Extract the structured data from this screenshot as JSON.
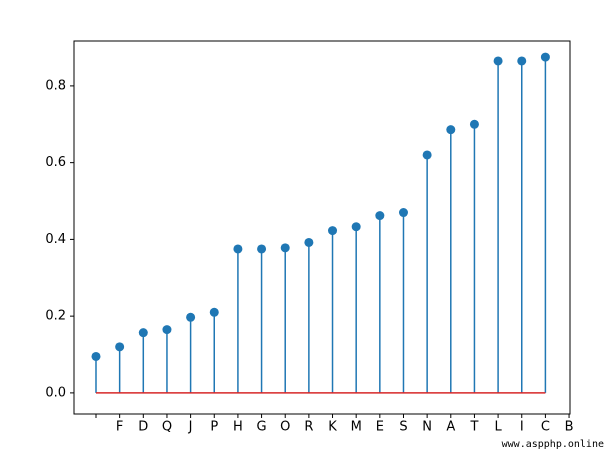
{
  "chart_data": {
    "type": "stem",
    "categories": [
      null,
      "F",
      "D",
      "Q",
      "J",
      "P",
      "H",
      "G",
      "O",
      "R",
      "K",
      "M",
      "E",
      "S",
      "N",
      "A",
      "T",
      "L",
      "I",
      "C",
      "B"
    ],
    "values": [
      0.095,
      0.12,
      0.157,
      0.165,
      0.197,
      0.21,
      0.375,
      0.375,
      0.378,
      0.392,
      0.423,
      0.433,
      0.462,
      0.47,
      0.62,
      0.686,
      0.7,
      0.865,
      0.865,
      0.875,
      null
    ],
    "color": "#1f77b4",
    "baseline": 0,
    "baseline_color": "#d62728",
    "xlim": [
      -0.93,
      20.04
    ],
    "ylim": [
      -0.055,
      0.917
    ],
    "yticks": [
      {
        "value": 0,
        "label": "0.0"
      },
      0.2,
      0.4,
      0.6,
      0.8
    ],
    "watermark": "www.aspphp.online"
  }
}
